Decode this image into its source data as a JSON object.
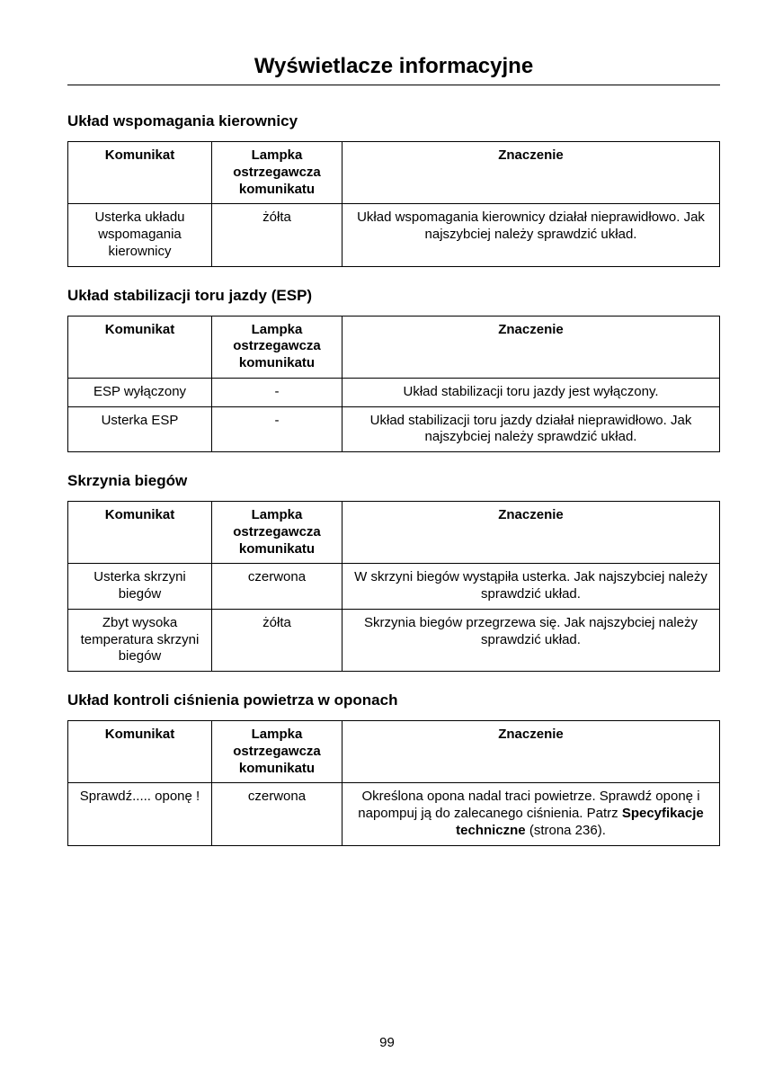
{
  "page": {
    "title": "Wyświetlacze informacyjne",
    "number": "99"
  },
  "headers": {
    "col1": "Komunikat",
    "col2": "Lampka ostrzegawcza komunikatu",
    "col3": "Znaczenie"
  },
  "sections": {
    "steering": {
      "heading": "Układ wspomagania kierownicy",
      "rows": [
        {
          "msg": "Usterka układu wspomagania kierownicy",
          "lamp": "żółta",
          "meaning": "Układ wspomagania kierownicy działał nieprawidłowo. Jak najszybciej należy sprawdzić układ."
        }
      ]
    },
    "esp": {
      "heading": "Układ stabilizacji toru jazdy (ESP)",
      "rows": [
        {
          "msg": "ESP wyłączony",
          "lamp": "-",
          "meaning": "Układ stabilizacji toru jazdy jest wyłączony."
        },
        {
          "msg": "Usterka ESP",
          "lamp": "-",
          "meaning": "Układ stabilizacji toru jazdy działał nieprawidłowo. Jak najszybciej należy sprawdzić układ."
        }
      ]
    },
    "gearbox": {
      "heading": "Skrzynia biegów",
      "rows": [
        {
          "msg": "Usterka skrzyni biegów",
          "lamp": "czerwona",
          "meaning": "W skrzyni biegów wystąpiła usterka. Jak najszybciej należy sprawdzić układ."
        },
        {
          "msg": "Zbyt wysoka temperatura skrzyni biegów",
          "lamp": "żółta",
          "meaning": "Skrzynia biegów przegrzewa się. Jak najszybciej należy sprawdzić układ."
        }
      ]
    },
    "tyres": {
      "heading": "Układ kontroli ciśnienia powietrza w oponach",
      "rows": [
        {
          "msg": "Sprawdź..... oponę !",
          "lamp": "czerwona",
          "meaning_pre": "Określona opona nadal traci powietrze. Sprawdź oponę i napompuj ją do zalecanego ciśnienia.  Patrz ",
          "meaning_bold": "Specyfikacje techniczne",
          "meaning_post": " (strona 236)."
        }
      ]
    }
  }
}
